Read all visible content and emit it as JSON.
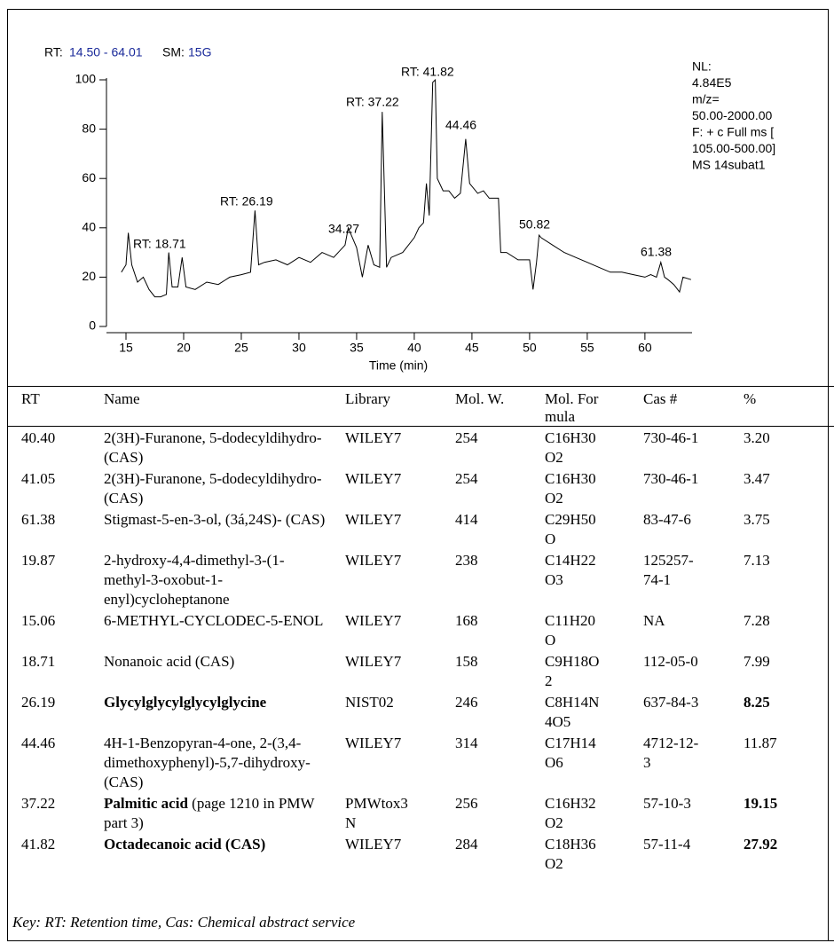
{
  "chart_data": {
    "type": "line",
    "header": {
      "rt_label": "RT:",
      "rt_range": "14.50 - 64.01",
      "sm_label": "SM:",
      "sm_value": "15G"
    },
    "info": [
      "NL:",
      "4.84E5",
      "m/z=",
      "50.00-2000.00",
      "F: + c Full ms [",
      "105.00-500.00]",
      "MS 14subat1"
    ],
    "annotations": [
      "RT: 18.71",
      "RT: 26.19",
      "34.27",
      "RT: 37.22",
      "RT: 41.82",
      "44.46",
      "50.82",
      "61.38"
    ],
    "x_label": "Time (min)",
    "x": [
      14.6,
      15,
      15.2,
      15.5,
      16,
      16.5,
      17,
      17.5,
      18,
      18.5,
      18.71,
      19,
      19.5,
      19.87,
      20.2,
      21,
      22,
      23,
      24,
      25,
      25.8,
      26.19,
      26.5,
      27,
      28,
      29,
      30,
      31,
      32,
      33,
      34,
      34.27,
      35,
      35.5,
      36,
      36.5,
      37,
      37.22,
      37.6,
      38,
      39,
      40,
      40.4,
      40.8,
      41.05,
      41.3,
      41.6,
      41.82,
      42,
      42.5,
      43,
      43.5,
      44,
      44.46,
      44.8,
      45.5,
      46,
      46.5,
      47.3,
      47.5,
      48,
      49,
      50,
      50.3,
      50.6,
      50.82,
      51,
      52,
      53,
      54,
      55,
      56,
      57,
      58,
      59,
      60,
      60.5,
      61,
      61.38,
      61.7,
      62,
      62.5,
      63,
      63.3,
      64
    ],
    "values": [
      22,
      25,
      38,
      25,
      18,
      20,
      15,
      12,
      12,
      13,
      30,
      16,
      16,
      28,
      16,
      15,
      18,
      17,
      20,
      21,
      22,
      47,
      25,
      26,
      27,
      25,
      28,
      26,
      30,
      28,
      33,
      40,
      32,
      20,
      33,
      25,
      24,
      87,
      24,
      28,
      30,
      36,
      40,
      42,
      58,
      45,
      99,
      100,
      60,
      55,
      55,
      52,
      54,
      76,
      58,
      54,
      55,
      52,
      52,
      30,
      30,
      27,
      27,
      15,
      26,
      37,
      36,
      33,
      30,
      28,
      26,
      24,
      22,
      22,
      21,
      20,
      21,
      20,
      26,
      20,
      19,
      17,
      14,
      20,
      19
    ],
    "xlim": [
      14.5,
      64.01
    ],
    "ylim": [
      0,
      100
    ],
    "xticks": [
      15,
      20,
      25,
      30,
      35,
      40,
      45,
      50,
      55,
      60
    ],
    "yticks": [
      0,
      20,
      40,
      60,
      80,
      100
    ],
    "color": "#000000"
  },
  "table": {
    "header": [
      "RT",
      "Name",
      "Library",
      "Mol. W.",
      "Mol. Formula",
      "Cas #",
      "%"
    ],
    "rows": [
      {
        "rt": "40.40",
        "name": "2(3H)-Furanone, 5-dodecyldihydro- (CAS)",
        "library": "WILEY7",
        "mol_w": "254",
        "formula": "C16H30O2",
        "cas": "730-46-1",
        "percent": "3.20"
      },
      {
        "rt": "41.05",
        "name": "2(3H)-Furanone, 5-dodecyldihydro- (CAS)",
        "library": "WILEY7",
        "mol_w": "254",
        "formula": "C16H30O2",
        "cas": "730-46-1",
        "percent": "3.47"
      },
      {
        "rt": "61.38",
        "name": "Stigmast-5-en-3-ol, (3á,24S)- (CAS)",
        "library": "WILEY7",
        "mol_w": "414",
        "formula": "C29H50O",
        "cas": "83-47-6",
        "percent": "3.75"
      },
      {
        "rt": "19.87",
        "name": "2-hydroxy-4,4-dimethyl-3-(1-methyl-3-oxobut-1-enyl)cycloheptanone",
        "library": "WILEY7",
        "mol_w": "238",
        "formula": "C14H22O3",
        "cas": "125257-74-1",
        "percent": "7.13"
      },
      {
        "rt": "15.06",
        "name": "6-METHYL-CYCLODEC-5-ENOL",
        "library": "WILEY7",
        "mol_w": "168",
        "formula": "C11H20O",
        "cas": "NA",
        "percent": "7.28"
      },
      {
        "rt": "18.71",
        "name": "Nonanoic acid (CAS)",
        "library": "WILEY7",
        "mol_w": "158",
        "formula": "C9H18O2",
        "cas": "112-05-0",
        "percent": "7.99"
      },
      {
        "rt": "26.19",
        "name_bold": "Glycylglycylglycylglycine",
        "library": "NIST02",
        "mol_w": "246",
        "formula": "C8H14N4O5",
        "cas": "637-84-3",
        "percent_bold": "8.25"
      },
      {
        "rt": "44.46",
        "name": "4H-1-Benzopyran-4-one, 2-(3,4-dimethoxyphenyl)-5,7-dihydroxy- (CAS)",
        "library": "WILEY7",
        "mol_w": "314",
        "formula": "C17H14O6",
        "cas": "4712-12-3",
        "percent": "11.87"
      },
      {
        "rt": "37.22",
        "name_bold": "Palmitic acid",
        "name": "(page 1210 in PMW part 3)",
        "library": "PMWtox3N",
        "mol_w": "256",
        "formula": "C16H32O2",
        "cas": "57-10-3",
        "percent_bold": "19.15"
      },
      {
        "rt": "41.82",
        "name_bold": "Octadecanoic acid (CAS)",
        "library": "WILEY7",
        "mol_w": "284",
        "formula": "C18H36O2",
        "cas": "57-11-4",
        "percent_bold": "27.92"
      }
    ],
    "key": "Key: RT: Retention time, Cas: Chemical abstract service"
  }
}
